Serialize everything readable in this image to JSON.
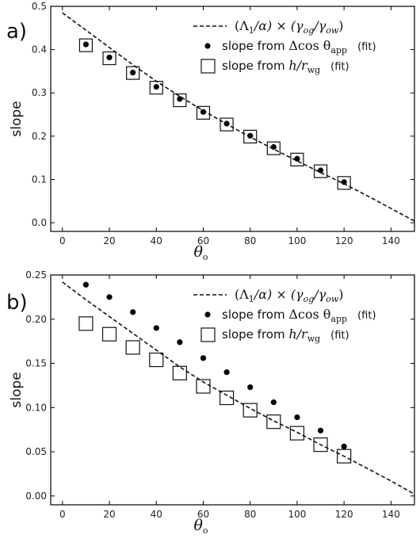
{
  "chart_data": [
    {
      "type": "scatter",
      "panel_label": "a)",
      "xlabel": "θo",
      "ylabel": "slope",
      "xlim": [
        -5,
        150
      ],
      "ylim": [
        -0.02,
        0.5
      ],
      "x_ticks": [
        0,
        20,
        40,
        60,
        80,
        100,
        120,
        140
      ],
      "y_ticks": [
        0.0,
        0.1,
        0.2,
        0.3,
        0.4,
        0.5
      ],
      "y_tick_labels": [
        "0.0",
        "0.1",
        "0.2",
        "0.3",
        "0.4",
        "0.5"
      ],
      "legend_position": "top-right",
      "series": [
        {
          "name": "(Λ1/α) × (γog/γow)",
          "style": "dashed-line",
          "x": [
            0,
            10,
            20,
            30,
            40,
            50,
            60,
            70,
            80,
            90,
            100,
            110,
            120,
            130,
            140,
            150
          ],
          "y": [
            0.485,
            0.445,
            0.405,
            0.365,
            0.327,
            0.292,
            0.259,
            0.228,
            0.198,
            0.17,
            0.143,
            0.116,
            0.09,
            0.062,
            0.033,
            0.004
          ]
        },
        {
          "name": "slope from Δcos θapp (fit)",
          "style": "filled-circle",
          "x": [
            10,
            20,
            30,
            40,
            50,
            60,
            70,
            80,
            90,
            100,
            110,
            120
          ],
          "y": [
            0.412,
            0.382,
            0.347,
            0.314,
            0.286,
            0.256,
            0.229,
            0.201,
            0.175,
            0.148,
            0.121,
            0.094
          ]
        },
        {
          "name": "slope from h/rwg (fit)",
          "style": "open-square",
          "x": [
            10,
            20,
            30,
            40,
            50,
            60,
            70,
            80,
            90,
            100,
            110,
            120
          ],
          "y": [
            0.41,
            0.38,
            0.346,
            0.312,
            0.283,
            0.254,
            0.227,
            0.199,
            0.172,
            0.146,
            0.119,
            0.092
          ]
        }
      ]
    },
    {
      "type": "scatter",
      "panel_label": "b)",
      "xlabel": "θo",
      "ylabel": "slope",
      "xlim": [
        -5,
        150
      ],
      "ylim": [
        -0.01,
        0.25
      ],
      "x_ticks": [
        0,
        20,
        40,
        60,
        80,
        100,
        120,
        140
      ],
      "y_ticks": [
        0.0,
        0.05,
        0.1,
        0.15,
        0.2,
        0.25
      ],
      "y_tick_labels": [
        "0.00",
        "0.05",
        "0.10",
        "0.15",
        "0.20",
        "0.25"
      ],
      "legend_position": "top-right",
      "series": [
        {
          "name": "(Λ1/α) × (γog/γow)",
          "style": "dashed-line",
          "x": [
            0,
            10,
            20,
            30,
            40,
            50,
            60,
            70,
            80,
            90,
            100,
            110,
            120,
            130,
            140,
            150
          ],
          "y": [
            0.242,
            0.222,
            0.203,
            0.184,
            0.165,
            0.146,
            0.129,
            0.114,
            0.099,
            0.085,
            0.072,
            0.058,
            0.045,
            0.031,
            0.017,
            0.002
          ]
        },
        {
          "name": "slope from Δcos θapp (fit)",
          "style": "filled-circle",
          "x": [
            10,
            20,
            30,
            40,
            50,
            60,
            70,
            80,
            90,
            100,
            110,
            120
          ],
          "y": [
            0.239,
            0.225,
            0.208,
            0.19,
            0.174,
            0.156,
            0.14,
            0.123,
            0.106,
            0.089,
            0.074,
            0.056
          ]
        },
        {
          "name": "slope from h/rwg (fit)",
          "style": "open-square",
          "x": [
            10,
            20,
            30,
            40,
            50,
            60,
            70,
            80,
            90,
            100,
            110,
            120
          ],
          "y": [
            0.195,
            0.183,
            0.168,
            0.154,
            0.139,
            0.124,
            0.111,
            0.097,
            0.084,
            0.071,
            0.058,
            0.045
          ]
        }
      ]
    }
  ]
}
